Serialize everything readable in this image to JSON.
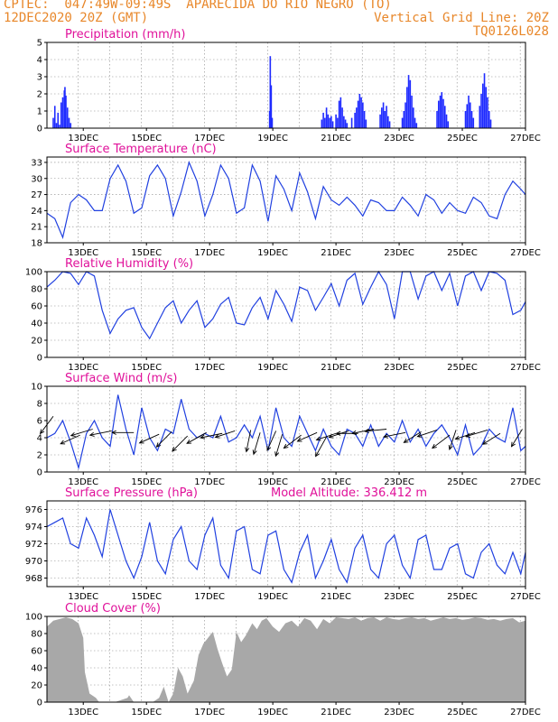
{
  "header": {
    "line1": "CPTEC:  047:49W-09:49S  APARECIDA DO RIO NEGRO (TO)",
    "line2_left": "12DEC2020 20Z (GMT)",
    "line2_right": "Vertical Grid Line: 20Z",
    "line3_right": "TQ0126L028"
  },
  "chart_data": [
    {
      "type": "bar",
      "title": "Precipitation (mm/h)",
      "ylim": [
        0,
        5
      ],
      "yticks": [
        0,
        1,
        2,
        3,
        4,
        5
      ],
      "xticks": [
        "13DEC",
        "15DEC",
        "17DEC",
        "19DEC",
        "21DEC",
        "23DEC",
        "25DEC",
        "27DEC"
      ],
      "color": "#1f2bff",
      "events": [
        [
          12.05,
          0.6
        ],
        [
          12.1,
          1.3
        ],
        [
          12.15,
          0.3
        ],
        [
          12.2,
          0.9
        ],
        [
          12.25,
          0.2
        ],
        [
          12.3,
          1.5
        ],
        [
          12.35,
          1.8
        ],
        [
          12.4,
          2.2
        ],
        [
          12.42,
          2.4
        ],
        [
          12.45,
          1.9
        ],
        [
          12.5,
          1.2
        ],
        [
          12.55,
          0.6
        ],
        [
          12.6,
          0.3
        ],
        [
          18.9,
          1.0
        ],
        [
          18.92,
          4.2
        ],
        [
          18.95,
          2.5
        ],
        [
          18.98,
          0.6
        ],
        [
          20.55,
          0.5
        ],
        [
          20.6,
          0.9
        ],
        [
          20.65,
          0.6
        ],
        [
          20.7,
          1.2
        ],
        [
          20.75,
          0.8
        ],
        [
          20.8,
          0.6
        ],
        [
          20.85,
          0.7
        ],
        [
          20.9,
          0.4
        ],
        [
          21.0,
          0.8
        ],
        [
          21.05,
          0.6
        ],
        [
          21.1,
          1.6
        ],
        [
          21.15,
          1.8
        ],
        [
          21.2,
          1.2
        ],
        [
          21.25,
          0.7
        ],
        [
          21.3,
          0.5
        ],
        [
          21.35,
          0.3
        ],
        [
          21.5,
          0.6
        ],
        [
          21.6,
          0.9
        ],
        [
          21.65,
          1.2
        ],
        [
          21.7,
          1.6
        ],
        [
          21.75,
          2.0
        ],
        [
          21.8,
          1.8
        ],
        [
          21.85,
          1.5
        ],
        [
          21.9,
          1.0
        ],
        [
          21.95,
          0.5
        ],
        [
          22.4,
          0.8
        ],
        [
          22.45,
          1.2
        ],
        [
          22.5,
          1.5
        ],
        [
          22.55,
          1.0
        ],
        [
          22.6,
          1.3
        ],
        [
          22.65,
          0.7
        ],
        [
          22.7,
          0.4
        ],
        [
          23.1,
          0.6
        ],
        [
          23.15,
          1.0
        ],
        [
          23.2,
          1.5
        ],
        [
          23.25,
          2.4
        ],
        [
          23.3,
          3.1
        ],
        [
          23.35,
          2.8
        ],
        [
          23.4,
          1.9
        ],
        [
          23.45,
          1.2
        ],
        [
          23.5,
          0.6
        ],
        [
          23.55,
          0.3
        ],
        [
          24.2,
          1.0
        ],
        [
          24.25,
          1.6
        ],
        [
          24.3,
          1.9
        ],
        [
          24.35,
          2.1
        ],
        [
          24.4,
          1.7
        ],
        [
          24.45,
          1.3
        ],
        [
          24.5,
          0.8
        ],
        [
          24.55,
          0.4
        ],
        [
          25.1,
          1.0
        ],
        [
          25.15,
          1.4
        ],
        [
          25.2,
          1.9
        ],
        [
          25.25,
          1.5
        ],
        [
          25.3,
          1.0
        ],
        [
          25.35,
          0.6
        ],
        [
          25.55,
          1.3
        ],
        [
          25.6,
          2.0
        ],
        [
          25.65,
          2.6
        ],
        [
          25.7,
          3.2
        ],
        [
          25.75,
          2.4
        ],
        [
          25.8,
          1.8
        ],
        [
          25.85,
          1.0
        ],
        [
          25.9,
          0.5
        ]
      ]
    },
    {
      "type": "line",
      "title": "Surface Temperature (nC)",
      "ylim": [
        18,
        34
      ],
      "yticks": [
        18,
        21,
        24,
        27,
        30,
        33
      ],
      "xticks": [
        "13DEC",
        "15DEC",
        "17DEC",
        "19DEC",
        "21DEC",
        "23DEC",
        "25DEC",
        "27DEC"
      ],
      "color": "#2040e0",
      "x": [
        11.85,
        12.1,
        12.35,
        12.6,
        12.85,
        13.1,
        13.35,
        13.6,
        13.85,
        14.1,
        14.35,
        14.6,
        14.85,
        15.1,
        15.35,
        15.6,
        15.85,
        16.1,
        16.35,
        16.6,
        16.85,
        17.1,
        17.35,
        17.6,
        17.85,
        18.1,
        18.35,
        18.6,
        18.85,
        19.1,
        19.35,
        19.6,
        19.85,
        20.1,
        20.35,
        20.6,
        20.85,
        21.1,
        21.35,
        21.6,
        21.85,
        22.1,
        22.35,
        22.6,
        22.85,
        23.1,
        23.35,
        23.6,
        23.85,
        24.1,
        24.35,
        24.6,
        24.85,
        25.1,
        25.35,
        25.6,
        25.85,
        26.1,
        26.35,
        26.6,
        26.85,
        27.0
      ],
      "y": [
        23.5,
        22.5,
        19.0,
        25.5,
        27.0,
        26.0,
        24.0,
        24.0,
        30.0,
        32.5,
        29.5,
        23.5,
        24.5,
        30.5,
        32.5,
        30.0,
        23.0,
        27.5,
        33.0,
        29.5,
        23.0,
        27.0,
        32.5,
        30.0,
        23.5,
        24.5,
        32.5,
        29.5,
        22.0,
        30.5,
        28.0,
        24.0,
        31.0,
        27.5,
        22.5,
        28.5,
        26.0,
        25.0,
        26.5,
        25.0,
        23.0,
        26.0,
        25.5,
        24.0,
        24.0,
        26.5,
        25.0,
        23.0,
        27.0,
        26.0,
        23.5,
        25.5,
        24.0,
        23.5,
        26.5,
        25.5,
        23.0,
        22.5,
        27.0,
        29.5,
        28.0,
        27.0
      ]
    },
    {
      "type": "line",
      "title": "Relative Humidity (%)",
      "ylim": [
        0,
        100
      ],
      "yticks": [
        0,
        20,
        40,
        60,
        80,
        100
      ],
      "xticks": [
        "13DEC",
        "15DEC",
        "17DEC",
        "19DEC",
        "21DEC",
        "23DEC",
        "25DEC",
        "27DEC"
      ],
      "color": "#2040e0",
      "x": [
        11.85,
        12.1,
        12.35,
        12.6,
        12.85,
        13.1,
        13.35,
        13.6,
        13.85,
        14.1,
        14.35,
        14.6,
        14.85,
        15.1,
        15.35,
        15.6,
        15.85,
        16.1,
        16.35,
        16.6,
        16.85,
        17.1,
        17.35,
        17.6,
        17.85,
        18.1,
        18.35,
        18.6,
        18.85,
        19.1,
        19.35,
        19.6,
        19.85,
        20.1,
        20.35,
        20.6,
        20.85,
        21.1,
        21.35,
        21.6,
        21.85,
        22.1,
        22.35,
        22.6,
        22.85,
        23.1,
        23.35,
        23.6,
        23.85,
        24.1,
        24.35,
        24.6,
        24.85,
        25.1,
        25.35,
        25.6,
        25.85,
        26.1,
        26.35,
        26.6,
        26.85,
        27.0
      ],
      "y": [
        82,
        90,
        100,
        98,
        85,
        100,
        95,
        55,
        28,
        45,
        55,
        58,
        35,
        22,
        40,
        58,
        66,
        40,
        55,
        66,
        35,
        45,
        62,
        70,
        40,
        38,
        58,
        70,
        45,
        78,
        62,
        42,
        82,
        78,
        55,
        70,
        86,
        60,
        90,
        98,
        62,
        82,
        100,
        85,
        45,
        100,
        100,
        68,
        95,
        100,
        78,
        98,
        60,
        95,
        100,
        78,
        100,
        98,
        90,
        50,
        55,
        65
      ]
    },
    {
      "type": "line",
      "title": "Surface Wind (m/s)",
      "ylim": [
        0,
        10
      ],
      "yticks": [
        0,
        2,
        4,
        6,
        8,
        10
      ],
      "xticks": [
        "13DEC",
        "15DEC",
        "17DEC",
        "19DEC",
        "21DEC",
        "23DEC",
        "25DEC",
        "27DEC"
      ],
      "color": "#2040e0",
      "x": [
        11.85,
        12.1,
        12.35,
        12.6,
        12.85,
        13.1,
        13.35,
        13.6,
        13.85,
        14.1,
        14.35,
        14.6,
        14.85,
        15.1,
        15.35,
        15.6,
        15.85,
        16.1,
        16.35,
        16.6,
        16.85,
        17.1,
        17.35,
        17.6,
        17.85,
        18.1,
        18.35,
        18.6,
        18.85,
        19.1,
        19.35,
        19.6,
        19.85,
        20.1,
        20.35,
        20.6,
        20.85,
        21.1,
        21.35,
        21.6,
        21.85,
        22.1,
        22.35,
        22.6,
        22.85,
        23.1,
        23.35,
        23.6,
        23.85,
        24.1,
        24.35,
        24.6,
        24.85,
        25.1,
        25.35,
        25.6,
        25.85,
        26.1,
        26.35,
        26.6,
        26.85,
        27.0
      ],
      "y": [
        4.0,
        4.5,
        6.0,
        3.5,
        0.5,
        4.5,
        6.0,
        4.0,
        3.0,
        9.0,
        5.0,
        2.0,
        7.5,
        4.0,
        2.5,
        5.0,
        4.5,
        8.5,
        5.0,
        4.0,
        4.5,
        4.0,
        6.5,
        3.5,
        4.0,
        5.5,
        4.0,
        6.5,
        2.5,
        7.5,
        4.0,
        3.0,
        6.5,
        4.5,
        2.5,
        5.0,
        3.0,
        2.0,
        5.0,
        4.5,
        3.0,
        5.5,
        3.0,
        4.5,
        3.5,
        6.0,
        3.5,
        5.0,
        3.0,
        4.5,
        5.5,
        4.0,
        2.0,
        5.5,
        2.0,
        3.0,
        5.0,
        4.0,
        3.5,
        7.5,
        2.5,
        3.0
      ],
      "arrows": [
        [
          12.05,
          6.5,
          -0.6,
          -0.8
        ],
        [
          12.9,
          4.3,
          -0.9,
          -0.4
        ],
        [
          13.3,
          5.0,
          -1.0,
          -0.3
        ],
        [
          13.9,
          4.8,
          -1.0,
          -0.2
        ],
        [
          14.6,
          4.6,
          -1.0,
          0.0
        ],
        [
          15.4,
          4.4,
          -0.9,
          -0.4
        ],
        [
          15.8,
          4.7,
          -0.7,
          -0.7
        ],
        [
          16.3,
          4.2,
          -0.7,
          -0.7
        ],
        [
          16.9,
          4.6,
          -0.9,
          -0.5
        ],
        [
          17.4,
          4.5,
          -1.0,
          -0.2
        ],
        [
          17.8,
          4.8,
          -0.9,
          -0.3
        ],
        [
          18.3,
          4.9,
          -0.2,
          -1.0
        ],
        [
          18.6,
          4.6,
          -0.3,
          -1.0
        ],
        [
          19.1,
          4.8,
          -0.4,
          -0.9
        ],
        [
          19.3,
          4.4,
          -0.3,
          -1.0
        ],
        [
          19.9,
          4.3,
          -0.8,
          -0.6
        ],
        [
          20.4,
          4.6,
          -0.9,
          -0.4
        ],
        [
          20.7,
          4.1,
          -0.5,
          -0.9
        ],
        [
          21.0,
          4.5,
          -0.9,
          -0.3
        ],
        [
          21.4,
          4.8,
          -0.9,
          -0.3
        ],
        [
          21.7,
          4.5,
          -1.0,
          0.0
        ],
        [
          22.2,
          5.0,
          -1.0,
          -0.2
        ],
        [
          22.6,
          5.0,
          -1.0,
          -0.1
        ],
        [
          23.2,
          4.6,
          -1.0,
          -0.2
        ],
        [
          23.7,
          4.7,
          -0.8,
          -0.5
        ],
        [
          24.2,
          4.9,
          -0.9,
          -0.3
        ],
        [
          24.6,
          4.3,
          -0.8,
          -0.6
        ],
        [
          24.8,
          4.9,
          -0.3,
          -0.9
        ],
        [
          25.4,
          4.6,
          -0.9,
          -0.3
        ],
        [
          25.8,
          4.9,
          -1.0,
          -0.3
        ],
        [
          26.2,
          4.5,
          -0.8,
          -0.5
        ],
        [
          26.9,
          5.0,
          -0.5,
          -0.8
        ]
      ]
    },
    {
      "type": "line",
      "title": "Surface Pressure (hPa)",
      "annotation": "Model Altitude: 336.412 m",
      "ylim": [
        967,
        977
      ],
      "yticks": [
        968,
        970,
        972,
        974,
        976
      ],
      "xticks": [
        "13DEC",
        "15DEC",
        "17DEC",
        "19DEC",
        "21DEC",
        "23DEC",
        "25DEC",
        "27DEC"
      ],
      "color": "#2040e0",
      "x": [
        11.85,
        12.1,
        12.35,
        12.6,
        12.85,
        13.1,
        13.35,
        13.6,
        13.85,
        14.1,
        14.35,
        14.6,
        14.85,
        15.1,
        15.35,
        15.6,
        15.85,
        16.1,
        16.35,
        16.6,
        16.85,
        17.1,
        17.35,
        17.6,
        17.85,
        18.1,
        18.35,
        18.6,
        18.85,
        19.1,
        19.35,
        19.6,
        19.85,
        20.1,
        20.35,
        20.6,
        20.85,
        21.1,
        21.35,
        21.6,
        21.85,
        22.1,
        22.35,
        22.6,
        22.85,
        23.1,
        23.35,
        23.6,
        23.85,
        24.1,
        24.35,
        24.6,
        24.85,
        25.1,
        25.35,
        25.6,
        25.85,
        26.1,
        26.35,
        26.6,
        26.85,
        27.0
      ],
      "y": [
        974,
        974.5,
        975,
        972,
        971.5,
        975,
        973,
        970.5,
        976,
        973,
        970,
        968,
        970.5,
        974.5,
        970,
        968.5,
        972.5,
        974,
        970,
        969,
        973,
        975,
        969.5,
        968,
        973.5,
        974,
        969,
        968.5,
        973,
        973.5,
        969,
        967.5,
        971,
        973,
        968,
        970,
        972.5,
        969,
        967.5,
        971.5,
        973,
        969,
        968,
        972,
        973,
        969.5,
        968,
        972.5,
        973,
        969,
        969,
        971.5,
        972,
        968.5,
        968,
        971,
        972,
        969.5,
        968.5,
        971,
        968.5,
        971
      ]
    },
    {
      "type": "bar",
      "title": "Cloud Cover (%)",
      "ylim": [
        0,
        100
      ],
      "yticks": [
        0,
        20,
        40,
        60,
        80,
        100
      ],
      "xticks": [
        "13DEC",
        "15DEC",
        "17DEC",
        "19DEC",
        "21DEC",
        "23DEC",
        "25DEC",
        "27DEC"
      ],
      "color": "#a8a8a8",
      "x": [
        11.85,
        12.05,
        12.25,
        12.45,
        12.65,
        12.85,
        13.0,
        13.05,
        13.2,
        13.4,
        13.5,
        13.6,
        13.8,
        14.0,
        14.4,
        14.45,
        14.6,
        14.9,
        15.05,
        15.2,
        15.4,
        15.55,
        15.7,
        15.85,
        16.0,
        16.15,
        16.3,
        16.5,
        16.65,
        16.8,
        16.95,
        17.1,
        17.25,
        17.4,
        17.55,
        17.7,
        17.85,
        18.0,
        18.15,
        18.35,
        18.5,
        18.65,
        18.8,
        19.0,
        19.2,
        19.4,
        19.6,
        19.8,
        20.0,
        20.2,
        20.4,
        20.6,
        20.8,
        21.0,
        21.2,
        21.4,
        21.6,
        21.8,
        22.0,
        22.2,
        22.4,
        22.6,
        22.8,
        23.0,
        23.2,
        23.4,
        23.6,
        23.8,
        24.0,
        24.2,
        24.4,
        24.6,
        24.8,
        25.0,
        25.2,
        25.4,
        25.6,
        25.8,
        26.0,
        26.2,
        26.4,
        26.6,
        26.8,
        27.0
      ],
      "y": [
        88,
        95,
        97,
        99,
        97,
        92,
        75,
        35,
        10,
        5,
        0,
        0,
        0,
        0,
        5,
        8,
        0,
        0,
        0,
        0,
        5,
        18,
        0,
        10,
        40,
        30,
        10,
        25,
        55,
        68,
        75,
        82,
        62,
        45,
        30,
        38,
        82,
        70,
        78,
        92,
        85,
        95,
        98,
        88,
        82,
        92,
        95,
        88,
        98,
        95,
        85,
        97,
        92,
        99,
        98,
        97,
        99,
        95,
        98,
        99,
        95,
        99,
        97,
        96,
        98,
        99,
        97,
        98,
        95,
        97,
        99,
        97,
        98,
        96,
        97,
        99,
        98,
        96,
        97,
        95,
        97,
        98,
        93,
        95
      ]
    }
  ]
}
